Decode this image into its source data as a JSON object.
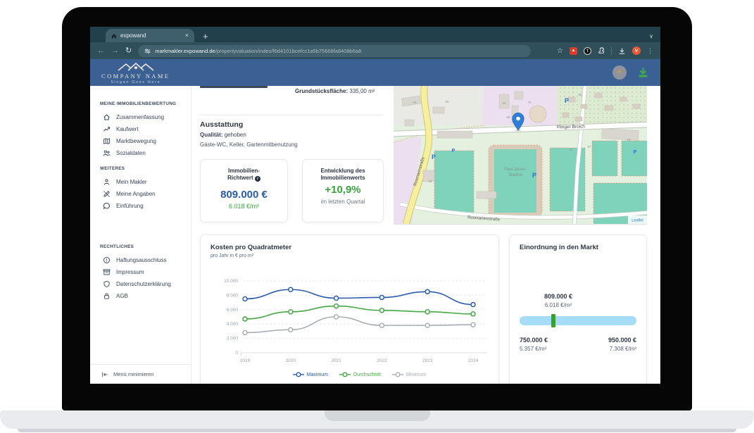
{
  "browser": {
    "tab_title": "expowand",
    "url_host": "markmakler.expowand.de",
    "url_path": "/propertyvaluation/index/f6d4101bcefcc1a5b75666fa8408b6a8",
    "extension_letter": "t",
    "profile_initial": "V"
  },
  "header": {
    "company_name": "COMPANY NAME",
    "slogan": "Slogan Goes Here"
  },
  "sidebar": {
    "sections": [
      {
        "title": "MEINE IMMOBILIENBEWERTUNG",
        "items": [
          {
            "label": "Zusammenfassung"
          },
          {
            "label": "Kaufwert"
          },
          {
            "label": "Marktbewegung"
          },
          {
            "label": "Sozialdaten"
          }
        ]
      },
      {
        "title": "WEITERES",
        "items": [
          {
            "label": "Mein Makler"
          },
          {
            "label": "Meine Angaben"
          },
          {
            "label": "Einführung"
          }
        ]
      },
      {
        "title": "RECHTLICHES",
        "items": [
          {
            "label": "Haftungsausschluss"
          },
          {
            "label": "Impressum"
          },
          {
            "label": "Datenschutzerklärung"
          },
          {
            "label": "AGB"
          }
        ]
      }
    ],
    "minimize_label": "Menü minimieren"
  },
  "overview": {
    "plot_area_label": "Grundstücksfläche:",
    "plot_area_value": "335,00 m²"
  },
  "ausstattung": {
    "title": "Ausstattung",
    "quality_label": "Qualität:",
    "quality_value": "gehoben",
    "features": "Gäste-WC, Keller, Gartenmitbenutzung"
  },
  "value_cards": {
    "richtwert": {
      "title_line1": "Immobilien-",
      "title_line2": "Richtwert",
      "info_glyph": "i",
      "value": "809.000 €",
      "per_sqm": "6.018 €/m²"
    },
    "entwicklung": {
      "title_line1": "Entwicklung des",
      "title_line2": "Immobilienwerts",
      "value": "+10,9%",
      "caption": "im letzten Quartal"
    }
  },
  "map": {
    "street_main": "Flinger Broich",
    "street_left": "Rosmarinstraße",
    "street_bottom": "Rosmarienstraße",
    "stadium_line1": "Paul Janes-",
    "stadium_line2": "Stadion",
    "parking": "P",
    "attribution": "Leaflet",
    "house_numbers": [
      "39",
      "66",
      "66",
      "70",
      "68",
      "80",
      "85",
      "87",
      "89",
      "90"
    ]
  },
  "chart_card": {
    "title": "Kosten pro Quadratmeter",
    "subtitle": "pro Jahr in € pro m²"
  },
  "chart_data": {
    "type": "line",
    "title": "Kosten pro Quadratmeter",
    "ylabel": "€ pro m² pro Jahr",
    "x": [
      2019,
      2020,
      2021,
      2022,
      2023,
      2024
    ],
    "series": [
      {
        "name": "Maximum",
        "color": "#2b5caa",
        "values": [
          7500,
          8800,
          7600,
          7700,
          8500,
          6700
        ]
      },
      {
        "name": "Durchschnitt",
        "color": "#45a845",
        "values": [
          4700,
          5700,
          6500,
          5900,
          5700,
          5400
        ]
      },
      {
        "name": "Minimum",
        "color": "#a9aeb4",
        "values": [
          2800,
          3200,
          5000,
          3800,
          3800,
          3900
        ]
      }
    ],
    "ylim": [
      0,
      10000
    ],
    "yticks": [
      0,
      2000,
      4000,
      6000,
      8000,
      10000
    ],
    "ytick_labels": [
      "0",
      "2.000",
      "4.000",
      "6.000",
      "8.000",
      "10.000"
    ],
    "grid": true,
    "legend_position": "bottom"
  },
  "market_card": {
    "title": "Einordnung in den Markt",
    "current_value": "809.000 €",
    "current_per_sqm": "6.018 €/m²",
    "min_value": "750.000 €",
    "min_per_sqm": "5.357 €/m²",
    "max_value": "950.000 €",
    "max_per_sqm": "7.308 €/m²",
    "marker_position_pct": 29
  }
}
